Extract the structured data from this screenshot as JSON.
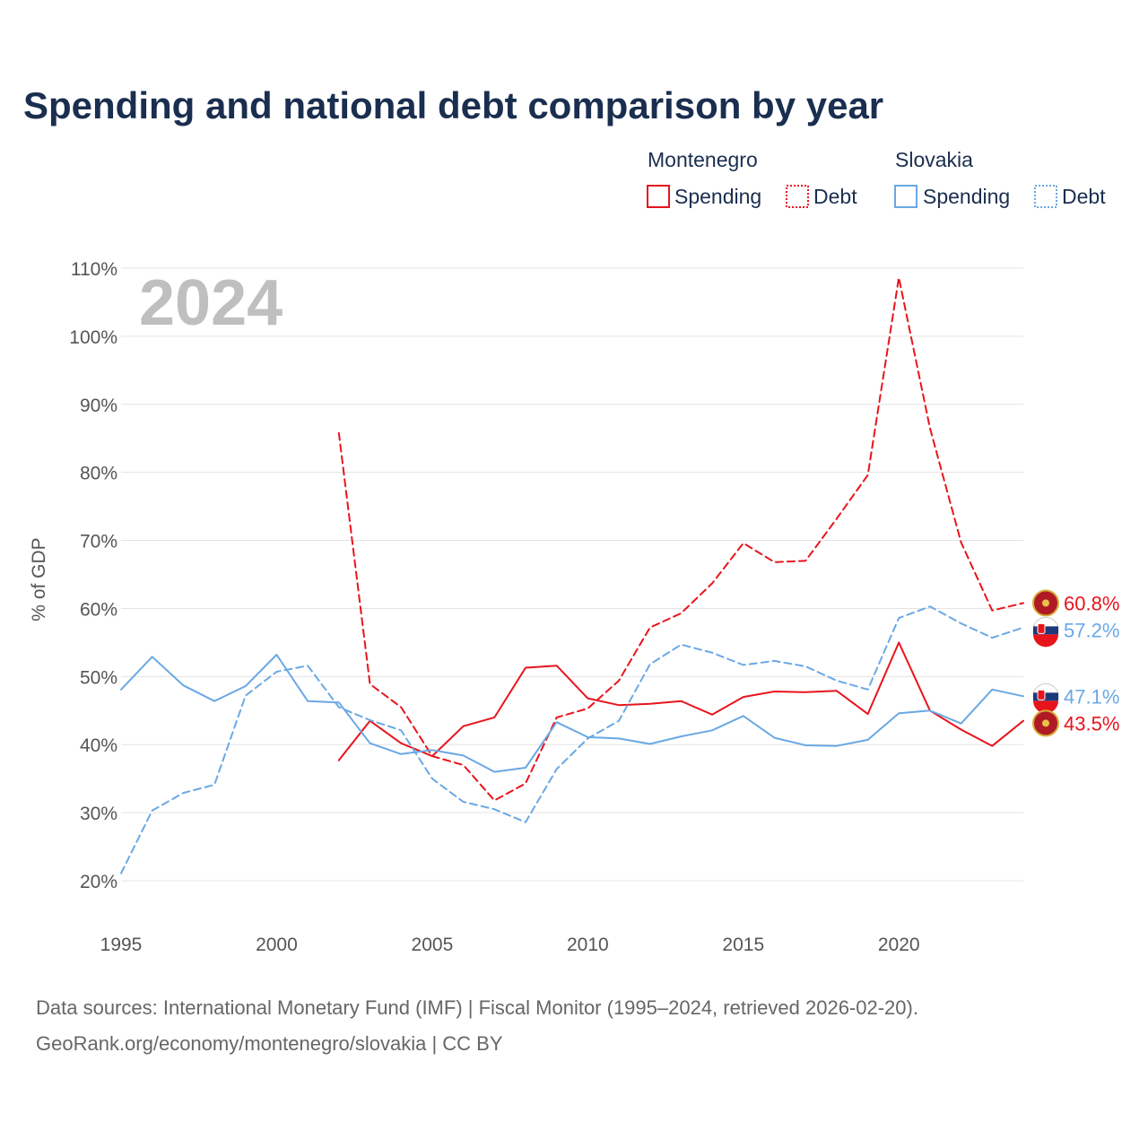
{
  "title": "Spending and national debt comparison by year",
  "legend": {
    "groups": [
      {
        "country": "Montenegro",
        "items": [
          "Spending",
          "Debt"
        ],
        "color": "#e8141c"
      },
      {
        "country": "Slovakia",
        "items": [
          "Spending",
          "Debt"
        ],
        "color": "#6aa8e4"
      }
    ]
  },
  "year_label": "2024",
  "source": {
    "line1": "Data sources: International Monetary Fund (IMF) | Fiscal Monitor (1995–2024, retrieved 2026-02-20).",
    "line2": "GeoRank.org/economy/montenegro/slovakia | CC BY"
  },
  "chart_data": {
    "type": "line",
    "title": "Spending and national debt comparison by year",
    "xlabel": "",
    "ylabel": "% of GDP",
    "xlim": [
      1995,
      2024
    ],
    "ylim": [
      20,
      110
    ],
    "x_ticks": [
      1995,
      2000,
      2005,
      2010,
      2015,
      2020
    ],
    "x_tick_labels": [
      "1995",
      "2000",
      "2005",
      "2010",
      "2015",
      "2020"
    ],
    "y_ticks": [
      20,
      30,
      40,
      50,
      60,
      70,
      80,
      90,
      100,
      110
    ],
    "y_tick_labels": [
      "20%",
      "30%",
      "40%",
      "50%",
      "60%",
      "70%",
      "80%",
      "90%",
      "100%",
      "110%"
    ],
    "grid": true,
    "legend_position": "top-right",
    "series": [
      {
        "name": "Montenegro Spending",
        "country": "Montenegro",
        "metric": "Spending",
        "color": "#e8141c",
        "dash": "solid",
        "x": [
          2002,
          2003,
          2004,
          2005,
          2006,
          2007,
          2008,
          2009,
          2010,
          2011,
          2012,
          2013,
          2014,
          2015,
          2016,
          2017,
          2018,
          2019,
          2020,
          2021,
          2022,
          2023,
          2024
        ],
        "values": [
          37.7,
          43.5,
          40.2,
          38.3,
          42.7,
          44.0,
          51.3,
          51.6,
          46.8,
          45.8,
          46.0,
          46.4,
          44.4,
          47.0,
          47.8,
          47.7,
          47.9,
          44.5,
          55.0,
          45.0,
          42.2,
          39.8,
          43.5
        ],
        "end_label": "43.5%"
      },
      {
        "name": "Montenegro Debt",
        "country": "Montenegro",
        "metric": "Debt",
        "color": "#e8141c",
        "dash": "dashed",
        "x": [
          2002,
          2003,
          2004,
          2005,
          2006,
          2007,
          2008,
          2009,
          2010,
          2011,
          2012,
          2013,
          2014,
          2015,
          2016,
          2017,
          2018,
          2019,
          2020,
          2021,
          2022,
          2023,
          2024
        ],
        "values": [
          85.8,
          48.9,
          45.5,
          38.3,
          37.0,
          31.8,
          34.3,
          44.0,
          45.3,
          49.4,
          57.2,
          59.3,
          63.7,
          69.6,
          66.8,
          67.0,
          73.2,
          79.6,
          108.6,
          86.5,
          69.7,
          59.7,
          60.8
        ],
        "end_label": "60.8%"
      },
      {
        "name": "Slovakia Spending",
        "country": "Slovakia",
        "metric": "Spending",
        "color": "#6aa8e4",
        "dash": "solid",
        "x": [
          1995,
          1996,
          1997,
          1998,
          1999,
          2000,
          2001,
          2002,
          2003,
          2004,
          2005,
          2006,
          2007,
          2008,
          2009,
          2010,
          2011,
          2012,
          2013,
          2014,
          2015,
          2016,
          2017,
          2018,
          2019,
          2020,
          2021,
          2022,
          2023,
          2024
        ],
        "values": [
          48.1,
          52.9,
          48.7,
          46.4,
          48.6,
          53.2,
          46.4,
          46.2,
          40.2,
          38.6,
          39.2,
          38.4,
          36.0,
          36.6,
          43.3,
          41.1,
          40.9,
          40.1,
          41.2,
          42.1,
          44.2,
          41.0,
          39.9,
          39.8,
          40.7,
          44.6,
          45.0,
          43.1,
          48.1,
          47.1
        ],
        "end_label": "47.1%"
      },
      {
        "name": "Slovakia Debt",
        "country": "Slovakia",
        "metric": "Debt",
        "color": "#6aa8e4",
        "dash": "dashed",
        "x": [
          1995,
          1996,
          1997,
          1998,
          1999,
          2000,
          2001,
          2002,
          2003,
          2004,
          2005,
          2006,
          2007,
          2008,
          2009,
          2010,
          2011,
          2012,
          2013,
          2014,
          2015,
          2016,
          2017,
          2018,
          2019,
          2020,
          2021,
          2022,
          2023,
          2024
        ],
        "values": [
          21.1,
          30.3,
          32.9,
          34.1,
          47.2,
          50.7,
          51.6,
          45.5,
          43.6,
          42.1,
          35.0,
          31.6,
          30.5,
          28.6,
          36.4,
          40.9,
          43.5,
          51.8,
          54.7,
          53.5,
          51.7,
          52.3,
          51.5,
          49.4,
          48.1,
          58.6,
          60.3,
          57.8,
          55.7,
          57.2
        ],
        "end_label": "57.2%"
      }
    ]
  }
}
